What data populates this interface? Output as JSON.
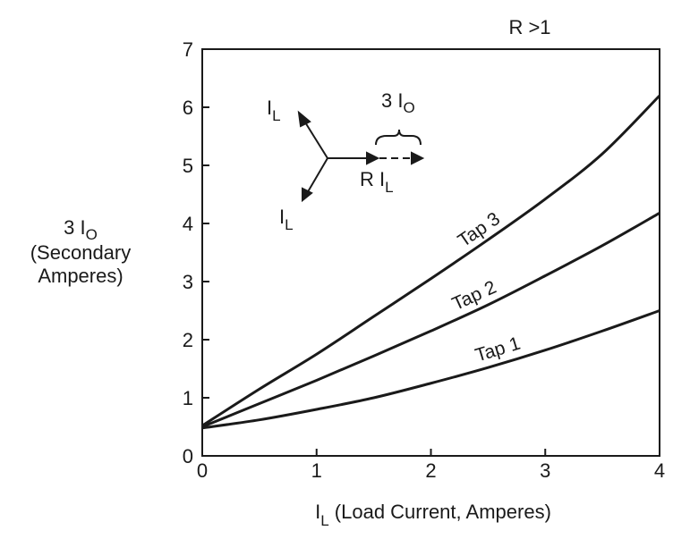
{
  "chart_data": {
    "type": "line",
    "title": "R >1",
    "xlabel": "I_L (Load Current, Amperes)",
    "xlabel_main": "I",
    "xlabel_sub": "L",
    "xlabel_rest": " (Load Current, Amperes)",
    "ylabel_line1_main": "3 I",
    "ylabel_line1_sub": "O",
    "ylabel_line2": "(Secondary",
    "ylabel_line3": "Amperes)",
    "xlim": [
      0,
      4
    ],
    "ylim": [
      0,
      7
    ],
    "xticks": [
      "0",
      "1",
      "2",
      "3",
      "4"
    ],
    "yticks": [
      "0",
      "1",
      "2",
      "3",
      "4",
      "5",
      "6",
      "7"
    ],
    "grid": false,
    "series": [
      {
        "name": "Tap 1",
        "x": [
          0,
          0.5,
          1,
          1.5,
          2,
          2.5,
          3,
          3.5,
          4
        ],
        "y": [
          0.48,
          0.62,
          0.8,
          1.0,
          1.25,
          1.52,
          1.82,
          2.15,
          2.5
        ]
      },
      {
        "name": "Tap 2",
        "x": [
          0,
          0.5,
          1,
          1.5,
          2,
          2.5,
          3,
          3.5,
          4
        ],
        "y": [
          0.5,
          0.9,
          1.3,
          1.72,
          2.15,
          2.6,
          3.1,
          3.62,
          4.18
        ]
      },
      {
        "name": "Tap 3",
        "x": [
          0,
          0.5,
          1,
          1.5,
          2,
          2.5,
          3,
          3.5,
          4
        ],
        "y": [
          0.52,
          1.15,
          1.75,
          2.4,
          3.05,
          3.72,
          4.42,
          5.2,
          6.2
        ]
      }
    ],
    "annotation": {
      "top_label_main": "3 I",
      "top_label_sub": "O",
      "vec_label_main": "I",
      "vec_label_sub": "L",
      "r_label_main": "R I",
      "r_label_sub": "L"
    }
  }
}
